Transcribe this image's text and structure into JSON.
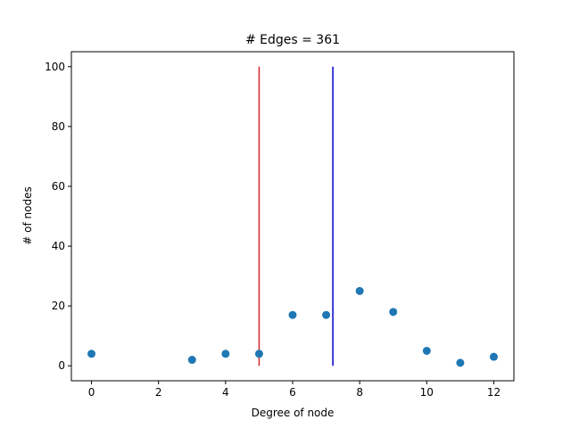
{
  "chart_data": {
    "type": "scatter",
    "title": "# Edges = 361",
    "xlabel": "Degree of node",
    "ylabel": "# of nodes",
    "xlim": [
      -0.6,
      12.6
    ],
    "ylim": [
      -5,
      105
    ],
    "xticks": [
      0,
      2,
      4,
      6,
      8,
      10,
      12
    ],
    "yticks": [
      0,
      20,
      40,
      60,
      80,
      100
    ],
    "grid": false,
    "points": [
      {
        "x": 0,
        "y": 4
      },
      {
        "x": 3,
        "y": 2
      },
      {
        "x": 4,
        "y": 4
      },
      {
        "x": 5,
        "y": 4
      },
      {
        "x": 6,
        "y": 17
      },
      {
        "x": 7,
        "y": 17
      },
      {
        "x": 8,
        "y": 25
      },
      {
        "x": 9,
        "y": 18
      },
      {
        "x": 10,
        "y": 5
      },
      {
        "x": 11,
        "y": 1
      },
      {
        "x": 12,
        "y": 3
      }
    ],
    "point_color": "#1f77b4",
    "vlines": [
      {
        "x": 5.0,
        "ymin": 0,
        "ymax": 100,
        "color": "#d62728"
      },
      {
        "x": 7.2,
        "ymin": 0,
        "ymax": 100,
        "color": "#0000cc"
      }
    ]
  }
}
